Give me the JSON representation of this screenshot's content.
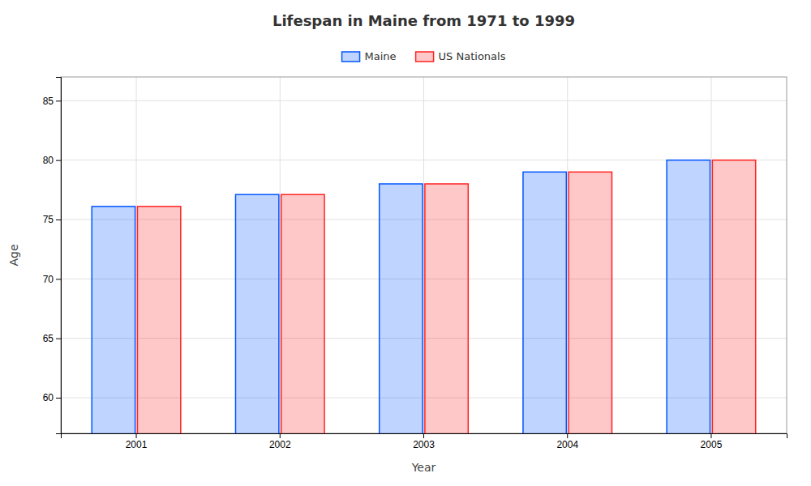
{
  "chart_data": {
    "type": "bar",
    "title": "Lifespan in Maine from 1971 to 1999",
    "xlabel": "Year",
    "ylabel": "Age",
    "categories": [
      "2001",
      "2002",
      "2003",
      "2004",
      "2005"
    ],
    "series": [
      {
        "name": "Maine",
        "color": "#0055ff",
        "values": [
          76.1,
          77.1,
          78.0,
          79.0,
          80.0
        ]
      },
      {
        "name": "US Nationals",
        "color": "#ff2222",
        "values": [
          76.1,
          77.1,
          78.0,
          79.0,
          80.0
        ]
      }
    ],
    "ylim": [
      57,
      87
    ],
    "yticks": [
      60,
      65,
      70,
      75,
      80,
      85
    ],
    "grid": true,
    "legend": "top"
  }
}
